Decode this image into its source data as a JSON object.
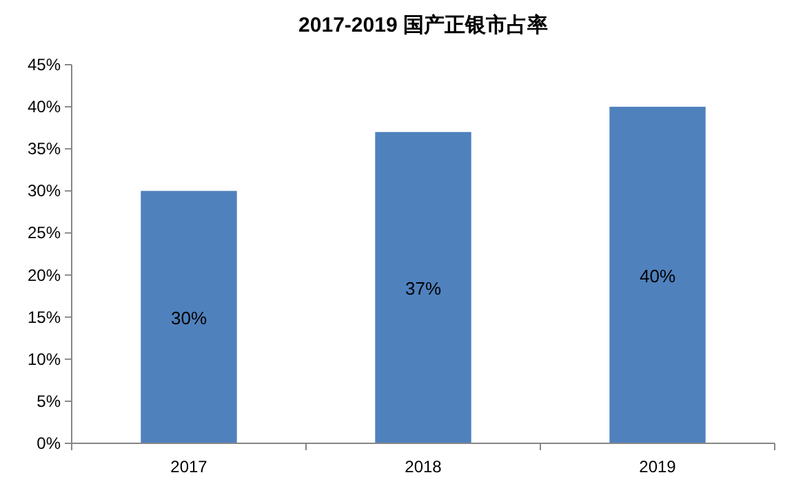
{
  "chart_data": {
    "type": "bar",
    "title": "2017-2019 国产正银市占率",
    "categories": [
      "2017",
      "2018",
      "2019"
    ],
    "values": [
      30,
      37,
      40
    ],
    "color": "#4f81bd",
    "value_labels": [
      "30%",
      "37%",
      "40%"
    ],
    "ylim": [
      0,
      45
    ],
    "yticks": [
      {
        "value": 0,
        "label": "0%"
      },
      {
        "value": 5,
        "label": "5%"
      },
      {
        "value": 10,
        "label": "10%"
      },
      {
        "value": 15,
        "label": "15%"
      },
      {
        "value": 20,
        "label": "20%"
      },
      {
        "value": 25,
        "label": "25%"
      },
      {
        "value": 30,
        "label": "30%"
      },
      {
        "value": 35,
        "label": "35%"
      },
      {
        "value": 40,
        "label": "40%"
      },
      {
        "value": 45,
        "label": "45%"
      }
    ]
  }
}
